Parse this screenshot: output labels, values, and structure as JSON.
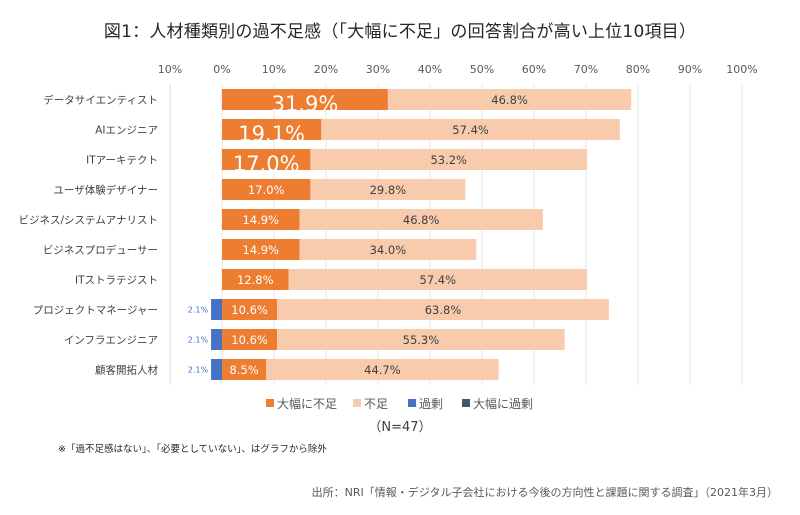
{
  "title": "図1：人材種類別の過不足感（「大幅に不足」の回答割合が高い上位10項目）",
  "note": "※「過不足感はない」、「必要としていない」、はグラフから除外",
  "source": "出所：NRI「情報・デジタル子会社における今後の方向性と課題に関する調査」（2021年3月）",
  "chart_data": {
    "type": "bar",
    "orientation": "horizontal",
    "stacked": true,
    "title": "図1：人材種類別の過不足感（「大幅に不足」の回答割合が高い上位10項目）",
    "xlabel": "",
    "ylabel": "",
    "xlim": [
      -10,
      100
    ],
    "x_ticks": [
      -10,
      0,
      10,
      20,
      30,
      40,
      50,
      60,
      70,
      80,
      90,
      100
    ],
    "x_tick_labels": [
      "10%",
      "0%",
      "10%",
      "20%",
      "30%",
      "40%",
      "50%",
      "60%",
      "70%",
      "80%",
      "90%",
      "100%"
    ],
    "grid": true,
    "legend_position": "bottom",
    "annotation": "（N=47）",
    "categories": [
      "データサイエンティスト",
      "AIエンジニア",
      "ITアーキテクト",
      "ユーザ体験デザイナー",
      "ビジネス/システムアナリスト",
      "ビジネスプロデューサー",
      "ITストラテジスト",
      "プロジェクトマネージャー",
      "インフラエンジニア",
      "顧客開拓人材"
    ],
    "series": [
      {
        "name": "大幅に不足",
        "color": "#ED7D31",
        "direction": "positive",
        "values": [
          31.9,
          19.1,
          17.0,
          17.0,
          14.9,
          14.9,
          12.8,
          10.6,
          10.6,
          8.5
        ],
        "emphasized_label_rows": [
          0,
          1,
          2
        ]
      },
      {
        "name": "不足",
        "color": "#F8CBAD",
        "direction": "positive",
        "values": [
          46.8,
          57.4,
          53.2,
          29.8,
          46.8,
          34.0,
          57.4,
          63.8,
          55.3,
          44.7
        ]
      },
      {
        "name": "過剰",
        "color": "#4472C4",
        "direction": "negative",
        "values": [
          0,
          0,
          0,
          0,
          0,
          0,
          0,
          2.1,
          2.1,
          2.1
        ]
      },
      {
        "name": "大幅に過剰",
        "color": "#44546A",
        "direction": "negative",
        "values": [
          0,
          0,
          0,
          0,
          0,
          0,
          0,
          0,
          0,
          0
        ]
      }
    ]
  }
}
